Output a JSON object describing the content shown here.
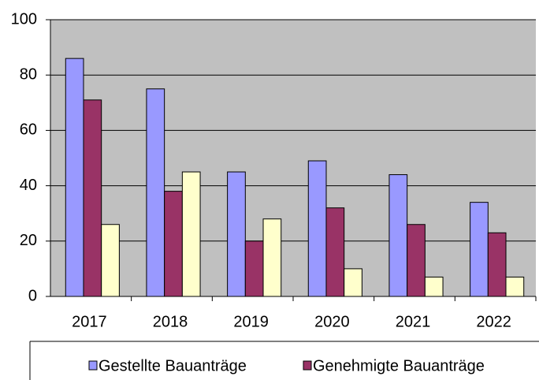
{
  "chart_data": {
    "type": "bar",
    "categories": [
      "2017",
      "2018",
      "2019",
      "2020",
      "2021",
      "2022"
    ],
    "series": [
      {
        "name": "Gestellte Bauanträge",
        "color": "#9999ff",
        "values": [
          86,
          75,
          45,
          49,
          44,
          34
        ]
      },
      {
        "name": "Genehmigte Bauanträge",
        "color": "#993366",
        "values": [
          71,
          38,
          20,
          32,
          26,
          23
        ]
      },
      {
        "color": "#ffffcc",
        "values": [
          26,
          45,
          28,
          10,
          7,
          7
        ]
      }
    ],
    "ylim": [
      0,
      100
    ],
    "yticks": [
      0,
      20,
      40,
      60,
      80,
      100
    ],
    "grid": true,
    "legend": "bottom"
  }
}
